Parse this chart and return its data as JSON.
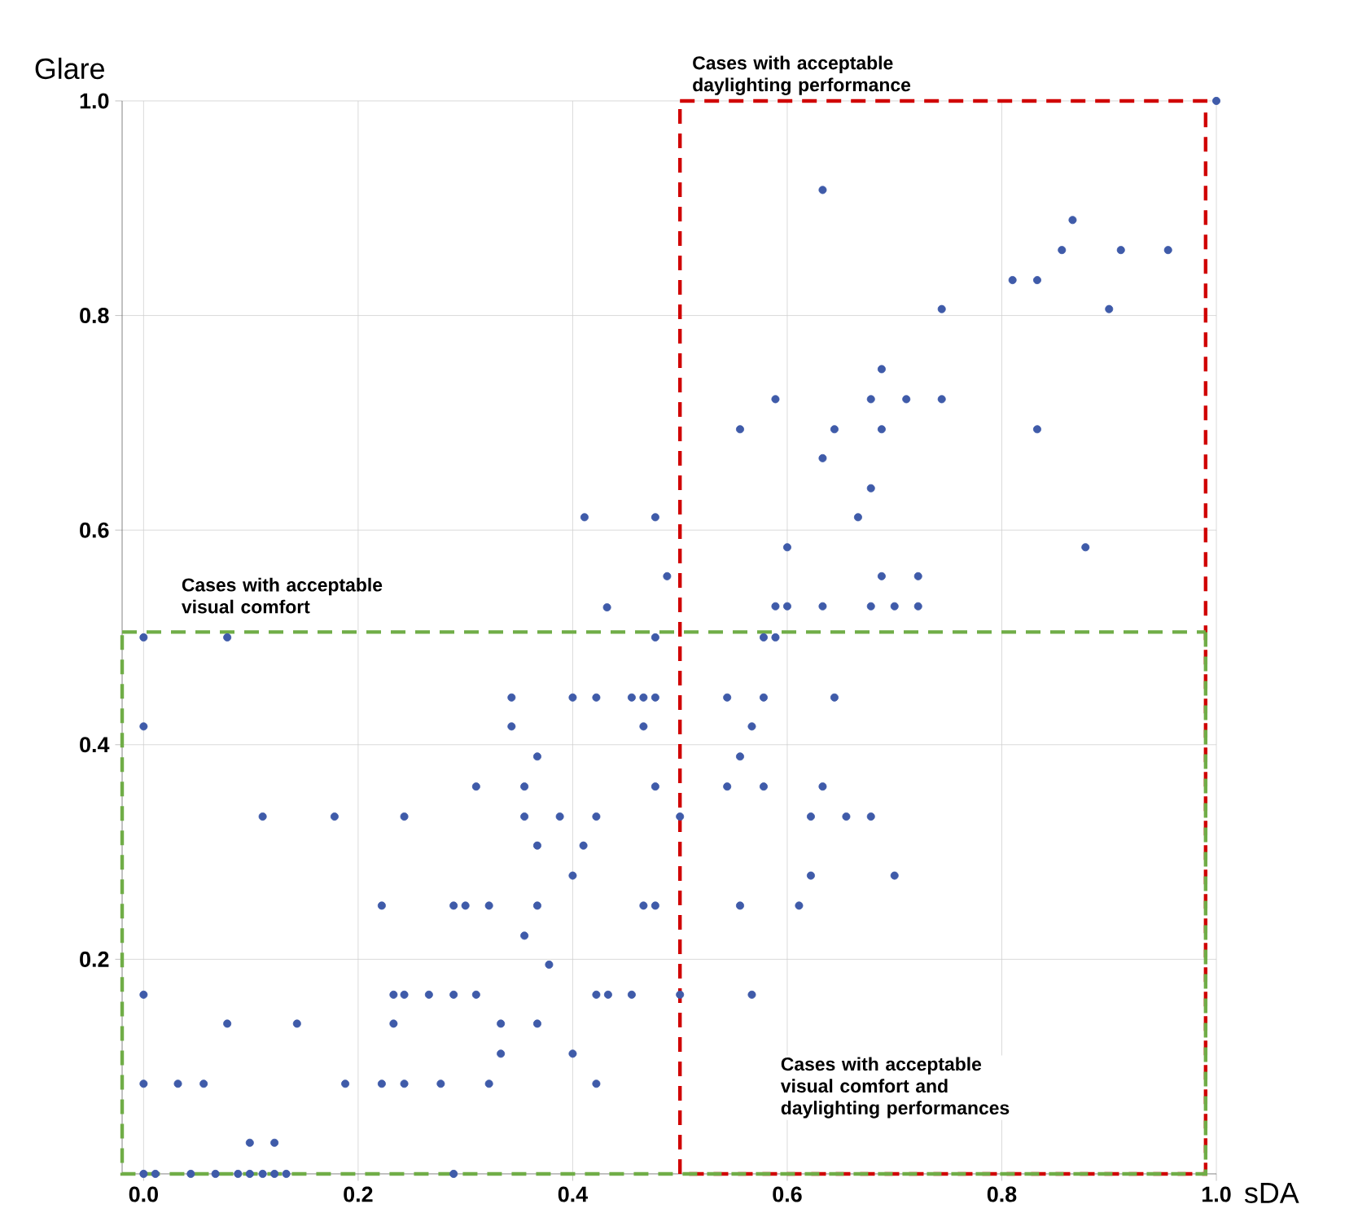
{
  "chart_data": {
    "type": "scatter",
    "xlabel": "sDA",
    "ylabel": "Glare",
    "xlim": [
      -0.02,
      1.0
    ],
    "ylim": [
      0,
      1.0
    ],
    "xticks": [
      {
        "value": 0,
        "label": "0.0"
      },
      0.2,
      0.4,
      0.6,
      0.8,
      {
        "value": 1.0,
        "label": "1.0"
      }
    ],
    "yticks": [
      0.2,
      0.4,
      0.6,
      0.8,
      {
        "value": 1.0,
        "label": "1.0"
      }
    ],
    "grid": true,
    "marker": "circle",
    "series": [
      {
        "color": "#3f5ba9",
        "x": [
          0,
          0.078,
          0.477,
          0.432,
          0.343,
          0.4,
          0.422,
          0.455,
          0.466,
          0.477,
          0,
          0.343,
          0.466,
          0.367,
          0.31,
          0.355,
          0.477,
          0.111,
          0.178,
          0.243,
          0.355,
          0.388,
          0.422,
          0.367,
          0.41,
          0.4,
          0.222,
          0.289,
          0.3,
          0.322,
          0.367,
          0.466,
          0.477,
          0.355,
          0.378,
          0,
          0.233,
          0.243,
          0.266,
          0.289,
          0.31,
          0.422,
          0.433,
          0.455,
          0.078,
          0.143,
          0.233,
          0.333,
          0.367,
          0.333,
          0.4,
          0,
          0.032,
          0.056,
          0.188,
          0.222,
          0.243,
          0.277,
          0.322,
          0.422,
          0.099,
          0.122,
          0,
          0.011,
          0.044,
          0.067,
          0.088,
          0.099,
          0.111,
          0.122,
          0.133,
          0.289,
          0.411,
          0.477,
          0.488,
          1.0,
          0.633,
          0.866,
          0.856,
          0.911,
          0.955,
          0.81,
          0.833,
          0.744,
          0.9,
          0.688,
          0.589,
          0.678,
          0.711,
          0.744,
          0.556,
          0.644,
          0.688,
          0.833,
          0.633,
          0.678,
          0.666,
          0.6,
          0.878,
          0.688,
          0.722,
          0.589,
          0.6,
          0.633,
          0.678,
          0.7,
          0.722,
          0.578,
          0.589,
          0.544,
          0.578,
          0.644,
          0.567,
          0.556,
          0.544,
          0.578,
          0.633,
          0.5,
          0.622,
          0.655,
          0.678,
          0.622,
          0.7,
          0.556,
          0.611,
          0.5,
          0.567
        ],
        "values": [
          0.5,
          0.5,
          0.5,
          0.528,
          0.444,
          0.444,
          0.444,
          0.444,
          0.444,
          0.444,
          0.417,
          0.417,
          0.417,
          0.389,
          0.361,
          0.361,
          0.361,
          0.333,
          0.333,
          0.333,
          0.333,
          0.333,
          0.333,
          0.306,
          0.306,
          0.278,
          0.25,
          0.25,
          0.25,
          0.25,
          0.25,
          0.25,
          0.25,
          0.222,
          0.195,
          0.167,
          0.167,
          0.167,
          0.167,
          0.167,
          0.167,
          0.167,
          0.167,
          0.167,
          0.14,
          0.14,
          0.14,
          0.14,
          0.14,
          0.112,
          0.112,
          0.084,
          0.084,
          0.084,
          0.084,
          0.084,
          0.084,
          0.084,
          0.084,
          0.084,
          0.029,
          0.029,
          0,
          0,
          0,
          0,
          0,
          0,
          0,
          0,
          0,
          0,
          0.612,
          0.612,
          0.557,
          1.0,
          0.917,
          0.889,
          0.861,
          0.861,
          0.861,
          0.833,
          0.833,
          0.806,
          0.806,
          0.75,
          0.722,
          0.722,
          0.722,
          0.722,
          0.694,
          0.694,
          0.694,
          0.694,
          0.667,
          0.639,
          0.612,
          0.584,
          0.584,
          0.557,
          0.557,
          0.529,
          0.529,
          0.529,
          0.529,
          0.529,
          0.529,
          0.5,
          0.5,
          0.444,
          0.444,
          0.444,
          0.417,
          0.389,
          0.361,
          0.361,
          0.361,
          0.333,
          0.333,
          0.333,
          0.333,
          0.278,
          0.278,
          0.25,
          0.25,
          0.167,
          0.167
        ]
      }
    ],
    "ref_lines": [
      {
        "axis": "x",
        "value": 0.5,
        "label": "Cases with acceptable daylighting performance",
        "color": "#d00000",
        "line_style": "dashed"
      },
      {
        "axis": "y",
        "value": 0.505,
        "label": "Cases with acceptable visual comfort",
        "color": "#70ad47",
        "line_style": "dashed"
      }
    ],
    "annotations": [
      "Cases with acceptable visual comfort and daylighting performances"
    ]
  }
}
